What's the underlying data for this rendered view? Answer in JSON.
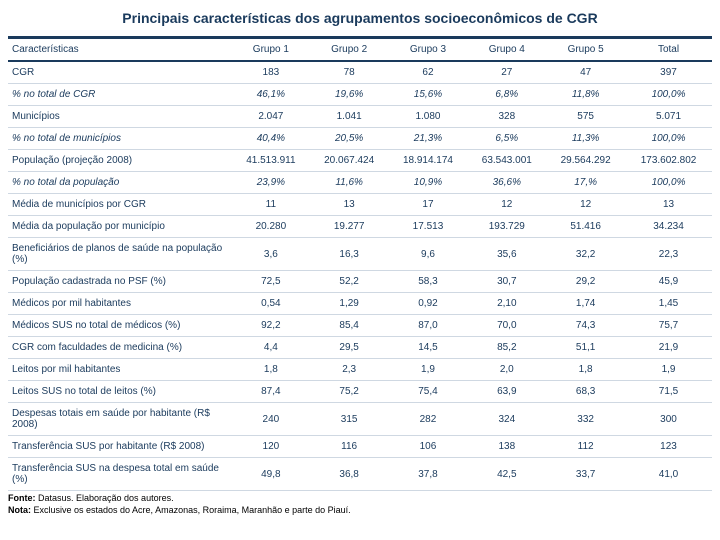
{
  "title": "Principais características dos agrupamentos socioeconômicos de CGR",
  "columns": [
    "Características",
    "Grupo 1",
    "Grupo 2",
    "Grupo 3",
    "Grupo 4",
    "Grupo 5",
    "Total"
  ],
  "rows": [
    {
      "italic": false,
      "cells": [
        "CGR",
        "183",
        "78",
        "62",
        "27",
        "47",
        "397"
      ]
    },
    {
      "italic": true,
      "cells": [
        "% no total de CGR",
        "46,1%",
        "19,6%",
        "15,6%",
        "6,8%",
        "11,8%",
        "100,0%"
      ]
    },
    {
      "italic": false,
      "cells": [
        "Municípios",
        "2.047",
        "1.041",
        "1.080",
        "328",
        "575",
        "5.071"
      ]
    },
    {
      "italic": true,
      "cells": [
        "% no total de municípios",
        "40,4%",
        "20,5%",
        "21,3%",
        "6,5%",
        "11,3%",
        "100,0%"
      ]
    },
    {
      "italic": false,
      "cells": [
        "População (projeção 2008)",
        "41.513.911",
        "20.067.424",
        "18.914.174",
        "63.543.001",
        "29.564.292",
        "173.602.802"
      ]
    },
    {
      "italic": true,
      "cells": [
        "% no total da população",
        "23,9%",
        "11,6%",
        "10,9%",
        "36,6%",
        "17,%",
        "100,0%"
      ]
    },
    {
      "italic": false,
      "cells": [
        "Média de municípios por CGR",
        "11",
        "13",
        "17",
        "12",
        "12",
        "13"
      ]
    },
    {
      "italic": false,
      "cells": [
        "Média da população por município",
        "20.280",
        "19.277",
        "17.513",
        "193.729",
        "51.416",
        "34.234"
      ]
    },
    {
      "italic": false,
      "cells": [
        "Beneficiários de planos de saúde na população (%)",
        "3,6",
        "16,3",
        "9,6",
        "35,6",
        "32,2",
        "22,3"
      ]
    },
    {
      "italic": false,
      "cells": [
        "População cadastrada no PSF (%)",
        "72,5",
        "52,2",
        "58,3",
        "30,7",
        "29,2",
        "45,9"
      ]
    },
    {
      "italic": false,
      "cells": [
        "Médicos por mil habitantes",
        "0,54",
        "1,29",
        "0,92",
        "2,10",
        "1,74",
        "1,45"
      ]
    },
    {
      "italic": false,
      "cells": [
        "Médicos SUS no total de médicos  (%)",
        "92,2",
        "85,4",
        "87,0",
        "70,0",
        "74,3",
        "75,7"
      ]
    },
    {
      "italic": false,
      "cells": [
        "CGR com faculdades de medicina (%)",
        "4,4",
        "29,5",
        "14,5",
        "85,2",
        "51,1",
        "21,9"
      ]
    },
    {
      "italic": false,
      "cells": [
        "Leitos por mil habitantes",
        "1,8",
        "2,3",
        "1,9",
        "2,0",
        "1,8",
        "1,9"
      ]
    },
    {
      "italic": false,
      "cells": [
        "Leitos SUS no total de leitos (%)",
        "87,4",
        "75,2",
        "75,4",
        "63,9",
        "68,3",
        "71,5"
      ]
    },
    {
      "italic": false,
      "cells": [
        "Despesas totais em saúde por habitante (R$ 2008)",
        "240",
        "315",
        "282",
        "324",
        "332",
        "300"
      ]
    },
    {
      "italic": false,
      "cells": [
        "Transferência SUS por habitante (R$ 2008)",
        "120",
        "116",
        "106",
        "138",
        "112",
        "123"
      ]
    },
    {
      "italic": false,
      "cells": [
        "Transferência SUS na despesa total em saúde (%)",
        "49,8",
        "36,8",
        "37,8",
        "42,5",
        "33,7",
        "41,0"
      ]
    }
  ],
  "footnotes": {
    "fonte_label": "Fonte:",
    "fonte_text": " Datasus. Elaboração dos autores.",
    "nota_label": "Nota:",
    "nota_text": " Exclusive os estados do Acre, Amazonas, Roraima, Maranhão e parte do Piauí."
  },
  "colors": {
    "header_border": "#1a3a5c",
    "row_border": "#cfd8e2",
    "text": "#1a3a5c"
  }
}
